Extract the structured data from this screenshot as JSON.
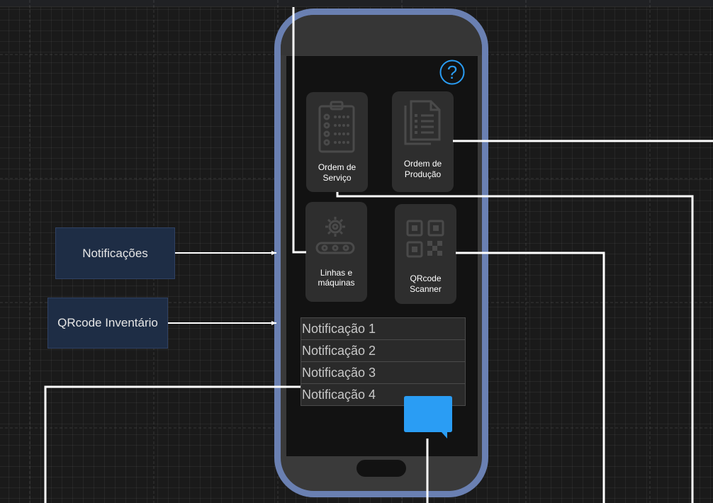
{
  "side_boxes": {
    "notificacoes": "Notificações",
    "qrcode_inventario": "QRcode Inventário"
  },
  "tiles": {
    "ordem_servico": {
      "line1": "Ordem de",
      "line2": "Serviço",
      "icon": "clipboard-checklist-icon"
    },
    "ordem_producao": {
      "line1": "Ordem de",
      "line2": "Produção",
      "icon": "documents-icon"
    },
    "linhas_maquinas": {
      "line1": "Linhas e",
      "line2": "máquinas",
      "icon": "gear-conveyor-icon"
    },
    "qrcode_scanner": {
      "line1": "QRcode",
      "line2": "Scanner",
      "icon": "qr-code-icon"
    }
  },
  "notifications": [
    "Notificação 1",
    "Notificação 2",
    "Notificação 3",
    "Notificação 4"
  ],
  "help_icon": {
    "glyph": "?",
    "icon": "help-icon"
  },
  "chat_icon": "chat-bubble-icon",
  "colors": {
    "background": "#1a1a1a",
    "phone_frame": "#6a80b2",
    "screen": "#121212",
    "tile": "#2e2e2e",
    "side_box": "#1e2d45",
    "accent_blue": "#2a9df4",
    "connector": "#ffffff"
  }
}
